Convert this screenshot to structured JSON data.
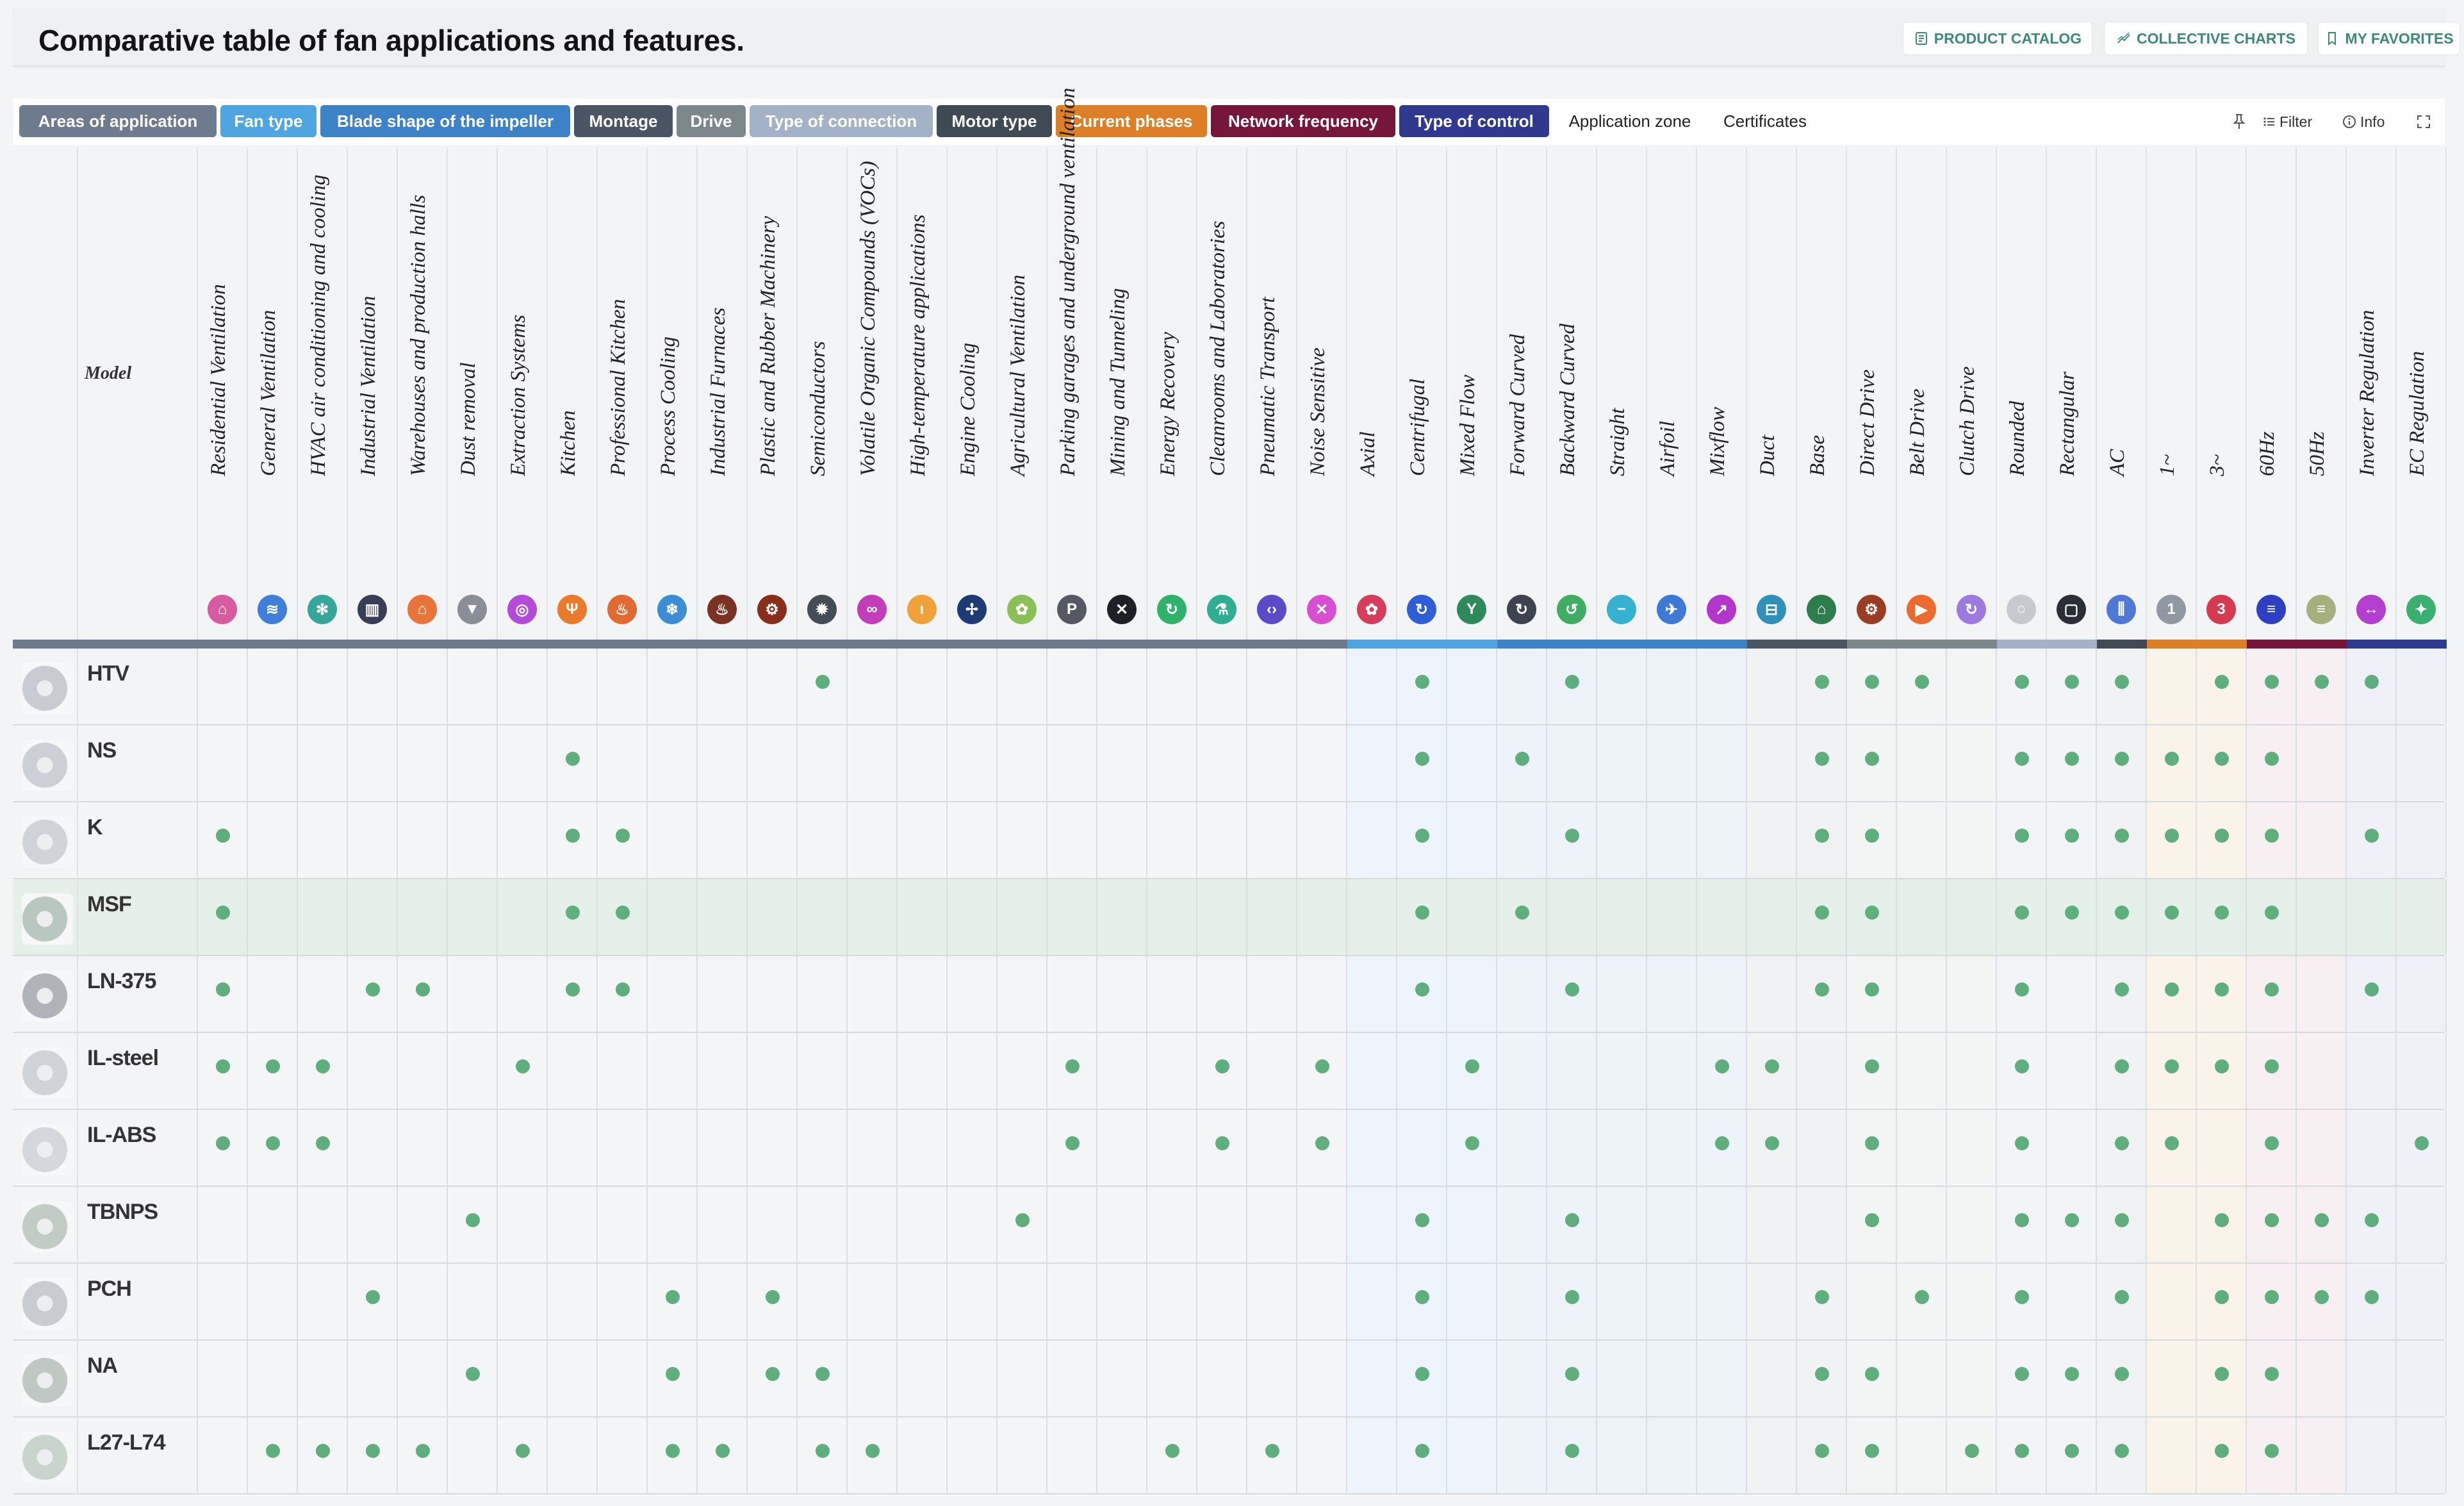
{
  "header": {
    "title": "Comparative table of fan applications and features.",
    "buttons": [
      {
        "label": "PRODUCT CATALOG",
        "icon": "catalog-icon"
      },
      {
        "label": "COLLECTIVE CHARTS",
        "icon": "chart-icon"
      },
      {
        "label": "MY FAVORITES",
        "icon": "bookmark-icon"
      }
    ]
  },
  "tabs": [
    {
      "label": "Areas of application",
      "color": "#6e7b8e"
    },
    {
      "label": "Fan type",
      "color": "#4ea5df"
    },
    {
      "label": "Blade shape of the impeller",
      "color": "#3d82c6"
    },
    {
      "label": "Montage",
      "color": "#4a5563"
    },
    {
      "label": "Drive",
      "color": "#7b878b"
    },
    {
      "label": "Type of connection",
      "color": "#a4b2c7"
    },
    {
      "label": "Motor type",
      "color": "#3f4a55"
    },
    {
      "label": "Current phases",
      "color": "#dd7f27"
    },
    {
      "label": "Network frequency",
      "color": "#77163b"
    },
    {
      "label": "Type of control",
      "color": "#2f3a8f"
    },
    {
      "label": "Application zone",
      "color": ""
    },
    {
      "label": "Certificates",
      "color": ""
    }
  ],
  "tools": [
    {
      "label": "",
      "icon": "pin-icon"
    },
    {
      "label": "Filter",
      "icon": "filter-icon"
    },
    {
      "label": "Info",
      "icon": "info-icon"
    },
    {
      "label": "",
      "icon": "fullscreen-icon"
    }
  ],
  "table": {
    "model_header": "Model",
    "columns": [
      {
        "label": "Residential Ventilation",
        "icon": "home-icon",
        "color": "#d95b9f",
        "group": 0
      },
      {
        "label": "General Ventilation",
        "icon": "air-flow-icon",
        "color": "#3f7fd9",
        "group": 0
      },
      {
        "label": "HVAC air conditioning and cooling",
        "icon": "snowflake-icon",
        "color": "#36a59a",
        "group": 0
      },
      {
        "label": "Industrial Ventilation",
        "icon": "factory-icon",
        "color": "#383e56",
        "group": 0
      },
      {
        "label": "Warehouses and production halls",
        "icon": "warehouse-icon",
        "color": "#e8743a",
        "group": 0
      },
      {
        "label": "Dust removal",
        "icon": "funnel-icon",
        "color": "#8a8e96",
        "group": 0
      },
      {
        "label": "Extraction Systems",
        "icon": "extractor-icon",
        "color": "#b44bd8",
        "group": 0
      },
      {
        "label": "Kitchen",
        "icon": "cutlery-icon",
        "color": "#ec7a2b",
        "group": 0
      },
      {
        "label": "Professional Kitchen",
        "icon": "chef-icon",
        "color": "#e06a32",
        "group": 0
      },
      {
        "label": "Process Cooling",
        "icon": "cooling-icon",
        "color": "#3a8ed6",
        "group": 0
      },
      {
        "label": "Industrial Furnaces",
        "icon": "flame-icon",
        "color": "#7a3322",
        "group": 0
      },
      {
        "label": "Plastic and Rubber Machinery",
        "icon": "robot-arm-icon",
        "color": "#8a2e1c",
        "group": 0
      },
      {
        "label": "Semiconductors",
        "icon": "chip-icon",
        "color": "#444c55",
        "group": 0
      },
      {
        "label": "Volatile Organic Compounds (VOCs)",
        "icon": "voc-icon",
        "color": "#c23dba",
        "group": 0
      },
      {
        "label": "High-temperature applications",
        "icon": "thermometer-icon",
        "color": "#f0a23a",
        "group": 0
      },
      {
        "label": "Engine Cooling",
        "icon": "fan-icon",
        "color": "#1f3b74",
        "group": 0
      },
      {
        "label": "Agricultural Ventilation",
        "icon": "tractor-icon",
        "color": "#8bbf57",
        "group": 0
      },
      {
        "label": "Parking garages and underground ventilation",
        "icon": "parking-icon",
        "color": "#555a62",
        "group": 0
      },
      {
        "label": "Mining and Tunneling",
        "icon": "pickaxe-icon",
        "color": "#1d2026",
        "group": 0
      },
      {
        "label": "Energy Recovery",
        "icon": "recycle-icon",
        "color": "#2fb36a",
        "group": 0
      },
      {
        "label": "Cleanrooms and Laboratories",
        "icon": "flask-icon",
        "color": "#2fae94",
        "group": 0
      },
      {
        "label": "Pneumatic Transport",
        "icon": "transport-icon",
        "color": "#5a4bc8",
        "group": 0
      },
      {
        "label": "Noise Sensitive",
        "icon": "mute-icon",
        "color": "#d64fd1",
        "group": 0
      },
      {
        "label": "Axial",
        "icon": "axial-fan-icon",
        "color": "#d63d5c",
        "group": 1
      },
      {
        "label": "Centrifugal",
        "icon": "centrifugal-icon",
        "color": "#2f5fd6",
        "group": 1
      },
      {
        "label": "Mixed Flow",
        "icon": "mixed-flow-icon",
        "color": "#2e8a5a",
        "group": 1
      },
      {
        "label": "Forward Curved",
        "icon": "forward-curved-icon",
        "color": "#3d4450",
        "group": 2
      },
      {
        "label": "Backward Curved",
        "icon": "backward-curved-icon",
        "color": "#3fae62",
        "group": 2
      },
      {
        "label": "Straight",
        "icon": "straight-icon",
        "color": "#35b2cf",
        "group": 2
      },
      {
        "label": "Airfoil",
        "icon": "airplane-icon",
        "color": "#3d7ad8",
        "group": 2
      },
      {
        "label": "Mixflow",
        "icon": "trend-icon",
        "color": "#b136c9",
        "group": 2
      },
      {
        "label": "Duct",
        "icon": "duct-icon",
        "color": "#2f90b8",
        "group": 3
      },
      {
        "label": "Base",
        "icon": "base-icon",
        "color": "#2d7d4d",
        "group": 3
      },
      {
        "label": "Direct Drive",
        "icon": "gear-icon",
        "color": "#9b3d22",
        "group": 4
      },
      {
        "label": "Belt Drive",
        "icon": "belt-icon",
        "color": "#ec6a2b",
        "group": 4
      },
      {
        "label": "Clutch Drive",
        "icon": "clutch-icon",
        "color": "#9d7ae0",
        "group": 4
      },
      {
        "label": "Rounded",
        "icon": "circle-icon",
        "color": "#c6c9cd",
        "group": 5
      },
      {
        "label": "Rectangular",
        "icon": "rectangle-icon",
        "color": "#2a2e36",
        "group": 5
      },
      {
        "label": "AC",
        "icon": "ac-icon",
        "color": "#4f79d6",
        "group": 6
      },
      {
        "label": "1~",
        "icon": "one-phase-icon",
        "color": "#9098a3",
        "group": 7
      },
      {
        "label": "3~",
        "icon": "three-phase-icon",
        "color": "#d63a4e",
        "group": 7
      },
      {
        "label": "60Hz",
        "icon": "wave-60-icon",
        "color": "#2e3fc4",
        "group": 8
      },
      {
        "label": "50Hz",
        "icon": "wave-50-icon",
        "color": "#a6b07d",
        "group": 8
      },
      {
        "label": "Inverter Regulation",
        "icon": "inverter-icon",
        "color": "#b33fd1",
        "group": 9
      },
      {
        "label": "EC Regulation",
        "icon": "ec-icon",
        "color": "#39b06f",
        "group": 9
      }
    ],
    "group_colors": [
      "#6e7b8e",
      "#4ea5df",
      "#3d82c6",
      "#4a5563",
      "#7b878b",
      "#a4b2c7",
      "#3f4a55",
      "#dd7f27",
      "#77163b",
      "#2f3a8f"
    ],
    "group_tints": [
      "#f4f5f7",
      "#edf4fb",
      "#eef2f9",
      "#f1f2f4",
      "#f3f4f4",
      "#f3f4f7",
      "#f1f2f4",
      "#faf3ea",
      "#f7eff2",
      "#f0f1f8"
    ],
    "rows": [
      {
        "name": "HTV",
        "highlight": false,
        "checks": [
          12,
          24,
          27,
          32,
          33,
          34,
          36,
          37,
          38,
          40,
          41,
          42,
          43
        ]
      },
      {
        "name": "NS",
        "highlight": false,
        "checks": [
          7,
          24,
          26,
          32,
          33,
          36,
          37,
          38,
          39,
          40,
          41
        ]
      },
      {
        "name": "K",
        "highlight": false,
        "checks": [
          0,
          7,
          8,
          24,
          27,
          32,
          33,
          36,
          37,
          38,
          39,
          40,
          41,
          43
        ]
      },
      {
        "name": "MSF",
        "highlight": true,
        "checks": [
          0,
          7,
          8,
          24,
          26,
          32,
          33,
          36,
          37,
          38,
          39,
          40,
          41
        ]
      },
      {
        "name": "LN-375",
        "highlight": false,
        "checks": [
          0,
          3,
          4,
          7,
          8,
          24,
          27,
          32,
          33,
          36,
          38,
          39,
          40,
          41,
          43
        ]
      },
      {
        "name": "IL-steel",
        "highlight": false,
        "checks": [
          0,
          1,
          2,
          6,
          17,
          20,
          22,
          25,
          30,
          31,
          33,
          36,
          38,
          39,
          40,
          41
        ]
      },
      {
        "name": "IL-ABS",
        "highlight": false,
        "checks": [
          0,
          1,
          2,
          17,
          20,
          22,
          25,
          30,
          31,
          33,
          36,
          38,
          39,
          41,
          44
        ]
      },
      {
        "name": "TBNPS",
        "highlight": false,
        "checks": [
          5,
          16,
          24,
          27,
          33,
          36,
          37,
          38,
          40,
          41,
          42,
          43
        ]
      },
      {
        "name": "PCH",
        "highlight": false,
        "checks": [
          3,
          9,
          11,
          24,
          27,
          32,
          34,
          36,
          38,
          40,
          41,
          42,
          43
        ]
      },
      {
        "name": "NA",
        "highlight": false,
        "checks": [
          5,
          9,
          11,
          12,
          24,
          27,
          32,
          33,
          36,
          37,
          38,
          40,
          41
        ]
      },
      {
        "name": "L27-L74",
        "highlight": false,
        "checks": [
          1,
          2,
          3,
          4,
          6,
          9,
          10,
          12,
          13,
          19,
          21,
          24,
          27,
          32,
          33,
          35,
          36,
          37,
          38,
          40,
          41
        ]
      }
    ]
  }
}
